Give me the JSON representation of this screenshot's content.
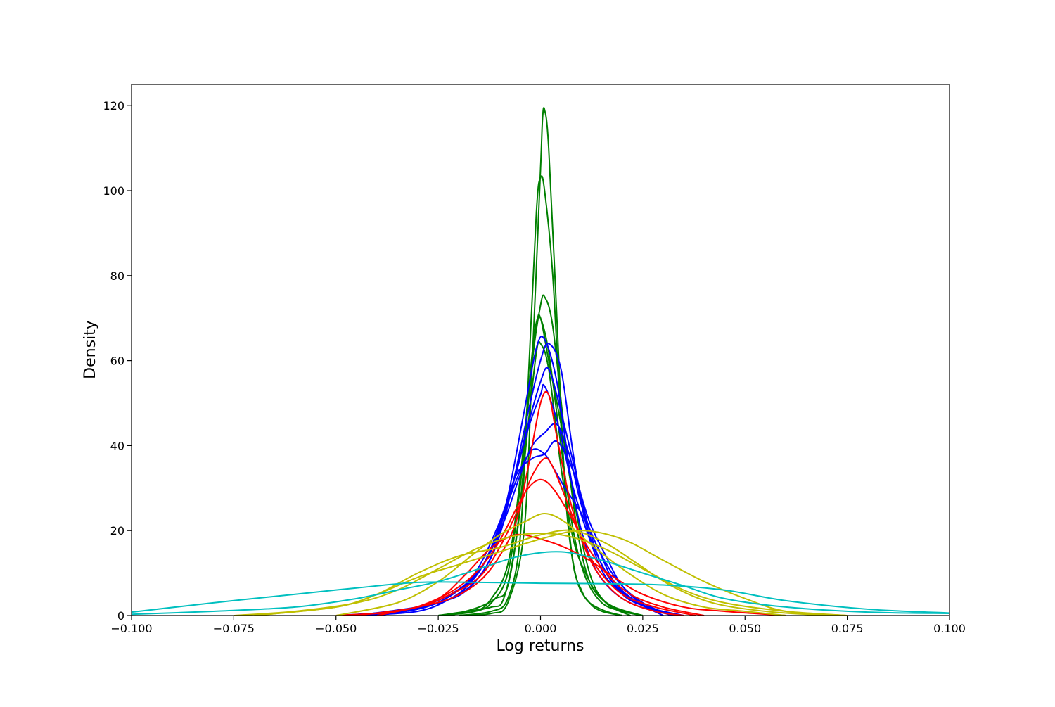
{
  "chart_data": {
    "type": "line",
    "xlabel": "Log returns",
    "ylabel": "Density",
    "xlim": [
      -0.1,
      0.1
    ],
    "ylim": [
      0,
      125
    ],
    "grid": false,
    "legend": "none",
    "x_ticks": [
      -0.1,
      -0.075,
      -0.05,
      -0.025,
      0.0,
      0.025,
      0.05,
      0.075,
      0.1
    ],
    "x_tick_labels": [
      "−0.100",
      "−0.075",
      "−0.050",
      "−0.025",
      "0.000",
      "0.025",
      "0.050",
      "0.075",
      "0.100"
    ],
    "y_ticks": [
      0,
      20,
      40,
      60,
      80,
      100,
      120
    ],
    "y_tick_labels": [
      "0",
      "20",
      "40",
      "60",
      "80",
      "100",
      "120"
    ],
    "colors": {
      "green": "#008000",
      "blue": "#0000ff",
      "red": "#ff0000",
      "yellow": "#bfbf00",
      "cyan": "#00bfbf"
    },
    "series": [
      {
        "color": "#008000",
        "x": [
          -0.02,
          -0.012,
          -0.008,
          -0.004,
          -0.002,
          0.0,
          0.0005,
          0.001,
          0.002,
          0.004,
          0.006,
          0.008,
          0.01,
          0.012,
          0.016,
          0.02
        ],
        "y": [
          0,
          0.5,
          3,
          20,
          60,
          105,
          117,
          119,
          110,
          70,
          30,
          12,
          6,
          3,
          1,
          0
        ]
      },
      {
        "color": "#008000",
        "x": [
          -0.02,
          -0.012,
          -0.008,
          -0.005,
          -0.003,
          -0.001,
          0.0,
          0.001,
          0.003,
          0.005,
          0.007,
          0.009,
          0.012,
          0.015,
          0.02
        ],
        "y": [
          0,
          1,
          4,
          18,
          55,
          95,
          103,
          100,
          80,
          45,
          20,
          8,
          3,
          1,
          0
        ]
      },
      {
        "color": "#008000",
        "x": [
          -0.025,
          -0.016,
          -0.012,
          -0.008,
          -0.005,
          -0.002,
          0.0,
          0.001,
          0.003,
          0.006,
          0.009,
          0.012,
          0.016,
          0.02,
          0.025
        ],
        "y": [
          0,
          1,
          3,
          10,
          30,
          60,
          73,
          75,
          68,
          42,
          20,
          8,
          3,
          1,
          0
        ]
      },
      {
        "color": "#008000",
        "x": [
          -0.025,
          -0.016,
          -0.012,
          -0.008,
          -0.005,
          -0.002,
          -0.001,
          0.0,
          0.002,
          0.005,
          0.008,
          0.011,
          0.015,
          0.02,
          0.025
        ],
        "y": [
          0,
          1,
          4,
          12,
          32,
          62,
          69,
          70,
          62,
          40,
          20,
          9,
          3,
          1,
          0
        ]
      },
      {
        "color": "#008000",
        "x": [
          -0.022,
          -0.015,
          -0.011,
          -0.008,
          -0.005,
          -0.003,
          -0.001,
          0.0,
          0.002,
          0.005,
          0.008,
          0.012,
          0.016,
          0.022
        ],
        "y": [
          0,
          2,
          4,
          7,
          25,
          50,
          68,
          70,
          60,
          45,
          28,
          10,
          3,
          0
        ]
      },
      {
        "color": "#008000",
        "x": [
          -0.025,
          -0.018,
          -0.012,
          -0.009,
          -0.006,
          -0.003,
          -0.001,
          0.0,
          0.002,
          0.005,
          0.008,
          0.011,
          0.014,
          0.018,
          0.025
        ],
        "y": [
          0,
          1,
          2,
          4,
          18,
          45,
          62,
          64,
          58,
          35,
          18,
          10,
          5,
          2,
          0
        ]
      },
      {
        "color": "#0000ff",
        "x": [
          -0.05,
          -0.035,
          -0.025,
          -0.018,
          -0.012,
          -0.008,
          -0.004,
          -0.001,
          0.001,
          0.004,
          0.007,
          0.01,
          0.014,
          0.02,
          0.028,
          0.035
        ],
        "y": [
          0,
          1,
          3,
          6,
          14,
          28,
          48,
          63,
          65,
          55,
          35,
          20,
          10,
          4,
          1,
          0
        ]
      },
      {
        "color": "#0000ff",
        "x": [
          -0.045,
          -0.03,
          -0.022,
          -0.016,
          -0.011,
          -0.007,
          -0.003,
          0.0,
          0.002,
          0.005,
          0.008,
          0.011,
          0.015,
          0.02,
          0.026,
          0.035
        ],
        "y": [
          0,
          1,
          4,
          8,
          16,
          30,
          48,
          60,
          64,
          58,
          38,
          22,
          12,
          5,
          2,
          0
        ]
      },
      {
        "color": "#0000ff",
        "x": [
          -0.045,
          -0.03,
          -0.022,
          -0.016,
          -0.011,
          -0.007,
          -0.003,
          0.0,
          0.002,
          0.005,
          0.009,
          0.012,
          0.016,
          0.022,
          0.03
        ],
        "y": [
          0,
          2,
          5,
          9,
          18,
          30,
          45,
          55,
          58,
          48,
          32,
          20,
          10,
          4,
          0
        ]
      },
      {
        "color": "#0000ff",
        "x": [
          -0.045,
          -0.03,
          -0.022,
          -0.016,
          -0.011,
          -0.007,
          -0.003,
          0.0,
          0.001,
          0.004,
          0.008,
          0.012,
          0.016,
          0.022,
          0.03
        ],
        "y": [
          0,
          2,
          4,
          9,
          18,
          30,
          44,
          52,
          54,
          46,
          30,
          18,
          9,
          4,
          0
        ]
      },
      {
        "color": "#0000ff",
        "x": [
          -0.04,
          -0.028,
          -0.02,
          -0.014,
          -0.009,
          -0.005,
          -0.002,
          0.001,
          0.004,
          0.007,
          0.01,
          0.014,
          0.019,
          0.025,
          0.032
        ],
        "y": [
          0,
          2,
          6,
          12,
          22,
          33,
          40,
          43,
          45,
          38,
          26,
          16,
          8,
          3,
          0
        ]
      },
      {
        "color": "#0000ff",
        "x": [
          -0.04,
          -0.03,
          -0.022,
          -0.016,
          -0.01,
          -0.006,
          -0.002,
          0.001,
          0.004,
          0.008,
          0.012,
          0.016,
          0.02,
          0.026,
          0.033
        ],
        "y": [
          0,
          2,
          5,
          10,
          22,
          33,
          37,
          38,
          41,
          34,
          22,
          14,
          7,
          2,
          0
        ]
      },
      {
        "color": "#0000ff",
        "x": [
          -0.04,
          -0.028,
          -0.02,
          -0.014,
          -0.009,
          -0.005,
          -0.002,
          0.001,
          0.003,
          0.006,
          0.01,
          0.014,
          0.018,
          0.024,
          0.032
        ],
        "y": [
          0,
          2,
          6,
          12,
          24,
          34,
          39,
          38,
          35,
          30,
          24,
          16,
          8,
          3,
          0
        ]
      },
      {
        "color": "#ff0000",
        "x": [
          -0.04,
          -0.03,
          -0.022,
          -0.015,
          -0.01,
          -0.006,
          -0.003,
          0.0,
          0.002,
          0.004,
          0.007,
          0.01,
          0.014,
          0.02,
          0.028,
          0.035
        ],
        "y": [
          0,
          2,
          4,
          8,
          14,
          22,
          35,
          50,
          52,
          42,
          28,
          18,
          10,
          4,
          1,
          0
        ]
      },
      {
        "color": "#ff0000",
        "x": [
          -0.045,
          -0.03,
          -0.022,
          -0.015,
          -0.01,
          -0.005,
          -0.002,
          0.001,
          0.003,
          0.006,
          0.01,
          0.014,
          0.02,
          0.028,
          0.038
        ],
        "y": [
          0,
          2,
          5,
          9,
          16,
          26,
          33,
          37,
          35,
          28,
          18,
          11,
          5,
          2,
          0
        ]
      },
      {
        "color": "#ff0000",
        "x": [
          -0.05,
          -0.035,
          -0.025,
          -0.017,
          -0.011,
          -0.006,
          -0.003,
          0.0,
          0.003,
          0.007,
          0.011,
          0.016,
          0.022,
          0.03,
          0.04
        ],
        "y": [
          0,
          1,
          4,
          9,
          16,
          25,
          30,
          32,
          30,
          24,
          17,
          10,
          5,
          2,
          0
        ]
      },
      {
        "color": "#ff0000",
        "x": [
          -0.05,
          -0.035,
          -0.025,
          -0.018,
          -0.012,
          -0.006,
          0.0,
          0.006,
          0.012,
          0.018,
          0.025,
          0.035,
          0.045,
          0.06
        ],
        "y": [
          0,
          1,
          4,
          10,
          16,
          19,
          18,
          16,
          13,
          9,
          5,
          2,
          1,
          0
        ]
      },
      {
        "color": "#bfbf00",
        "x": [
          -0.05,
          -0.035,
          -0.025,
          -0.017,
          -0.01,
          -0.004,
          0.001,
          0.006,
          0.012,
          0.02,
          0.03,
          0.04,
          0.05,
          0.06
        ],
        "y": [
          0,
          3,
          8,
          14,
          19,
          22,
          24,
          22,
          17,
          11,
          5,
          2,
          1,
          0
        ]
      },
      {
        "color": "#bfbf00",
        "x": [
          -0.07,
          -0.05,
          -0.04,
          -0.03,
          -0.02,
          -0.01,
          0.0,
          0.008,
          0.016,
          0.024,
          0.032,
          0.042,
          0.055,
          0.07
        ],
        "y": [
          0,
          2,
          5,
          10,
          14,
          16,
          19,
          20,
          17,
          12,
          7,
          3,
          1,
          0
        ]
      },
      {
        "color": "#bfbf00",
        "x": [
          -0.07,
          -0.05,
          -0.04,
          -0.03,
          -0.02,
          -0.01,
          0.0,
          0.01,
          0.02,
          0.03,
          0.04,
          0.05,
          0.06,
          0.075
        ],
        "y": [
          0,
          2,
          5,
          9,
          12,
          15,
          18,
          20,
          18,
          13,
          8,
          4,
          1,
          0
        ]
      },
      {
        "color": "#bfbf00",
        "x": [
          -0.075,
          -0.06,
          -0.045,
          -0.035,
          -0.025,
          -0.015,
          -0.005,
          0.005,
          0.015,
          0.025,
          0.035,
          0.045,
          0.06,
          0.075
        ],
        "y": [
          0,
          1,
          3,
          6,
          11,
          16,
          19,
          19,
          16,
          11,
          6,
          3,
          1,
          0
        ]
      },
      {
        "color": "#00bfbf",
        "x": [
          -0.1,
          -0.08,
          -0.06,
          -0.045,
          -0.035,
          -0.025,
          -0.015,
          -0.005,
          0.005,
          0.015,
          0.025,
          0.035,
          0.045,
          0.06,
          0.08,
          0.1
        ],
        "y": [
          0.3,
          1,
          2,
          4,
          6,
          8,
          11,
          14,
          15,
          13,
          10,
          7,
          4,
          2,
          0.8,
          0.5
        ]
      },
      {
        "color": "#00bfbf",
        "x": [
          -0.1,
          -0.08,
          -0.06,
          -0.045,
          -0.03,
          -0.015,
          0.0,
          0.015,
          0.03,
          0.045,
          0.06,
          0.08,
          0.1
        ],
        "y": [
          0.8,
          3,
          5,
          6.5,
          7.8,
          7.8,
          7.6,
          7.5,
          7.2,
          6,
          3.5,
          1.5,
          0.6
        ]
      }
    ]
  }
}
